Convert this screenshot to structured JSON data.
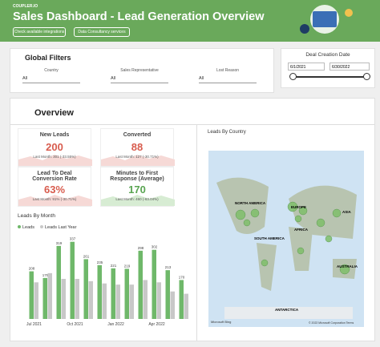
{
  "header": {
    "logo": "COUPLER.IO",
    "title": "Sales Dashboard - Lead Generation Overview",
    "buttons": [
      "Check available integrations",
      "Data Consultancy services"
    ]
  },
  "filters": {
    "title": "Global Filters",
    "dropdowns": [
      {
        "label": "Country",
        "value": "All"
      },
      {
        "label": "Sales Representative",
        "value": "All"
      },
      {
        "label": "Lost Reason",
        "value": "All"
      }
    ]
  },
  "date_filter": {
    "title": "Deal Creation Date",
    "start": "6/1/2021",
    "end": "6/30/2022"
  },
  "overview": {
    "title": "Overview",
    "kpis": [
      {
        "title": "New Leads",
        "value": "200",
        "note": "Last Month: 301 (-33.55%)"
      },
      {
        "title": "Converted",
        "value": "88",
        "note": "Last Month: 127 (-30.71%)"
      },
      {
        "title": "Lead To Deal Conversion Rate",
        "value": "63%",
        "note": "Last Month: 91% (-30.71%)"
      },
      {
        "title": "Minutes to First Response (Average)",
        "value": "170",
        "note": "Last Month: 460 (-63.04%)"
      }
    ]
  },
  "map": {
    "title": "Leads By Country",
    "labels": [
      "NORTH AMERICA",
      "SOUTH AMERICA",
      "EUROPE",
      "AFRICA",
      "ASIA",
      "AUSTRALIA",
      "ANTARCTICA"
    ],
    "credit": "Microsoft Bing",
    "copyright": "© 2022 Microsoft Corporation Terms"
  },
  "chart_data": {
    "type": "bar",
    "title": "Leads By Month",
    "categories": [
      "Jul 2021",
      null,
      null,
      "Oct 2021",
      null,
      null,
      "Jan 2022",
      null,
      null,
      "Apr 2022",
      null,
      null
    ],
    "series": [
      {
        "name": "Leads",
        "color": "#6fb86a",
        "values": [
          208,
          179,
          319,
          337,
          261,
          235,
          221,
          219,
          298,
          302,
          213,
          170
        ]
      },
      {
        "name": "Leads Last Year",
        "color": "#c8c8c8",
        "values": [
          160,
          200,
          175,
          175,
          165,
          155,
          150,
          150,
          170,
          160,
          120,
          110
        ]
      }
    ],
    "ylim": [
      0,
      350
    ]
  }
}
